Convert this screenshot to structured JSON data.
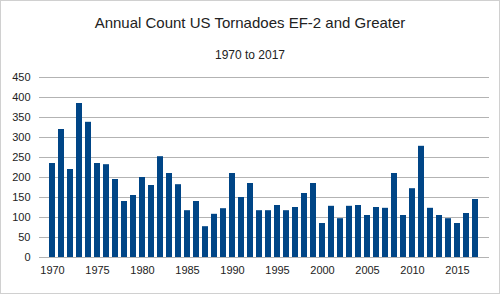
{
  "chart_data": {
    "type": "bar",
    "title": "Annual Count US Tornadoes EF-2 and Greater",
    "subtitle": "1970 to 2017",
    "categories": [
      "1970",
      null,
      null,
      null,
      null,
      "1975",
      null,
      null,
      null,
      null,
      "1980",
      null,
      null,
      null,
      null,
      "1985",
      null,
      null,
      null,
      null,
      "1990",
      null,
      null,
      null,
      null,
      "1995",
      null,
      null,
      null,
      null,
      "2000",
      null,
      null,
      null,
      null,
      "2005",
      null,
      null,
      null,
      null,
      "2010",
      null,
      null,
      null,
      null,
      "2015",
      null,
      null
    ],
    "values": [
      235,
      320,
      220,
      385,
      338,
      235,
      232,
      195,
      140,
      155,
      200,
      180,
      252,
      210,
      182,
      117,
      140,
      77,
      108,
      122,
      210,
      150,
      185,
      117,
      117,
      130,
      117,
      125,
      160,
      185,
      85,
      128,
      97,
      128,
      130,
      105,
      125,
      123,
      210,
      105,
      172,
      278,
      123,
      105,
      97,
      85,
      110,
      145
    ],
    "color": "#004586",
    "ylim": [
      0,
      450
    ],
    "yticks": [
      0,
      50,
      100,
      150,
      200,
      250,
      300,
      350,
      400,
      450
    ],
    "grid": true
  }
}
